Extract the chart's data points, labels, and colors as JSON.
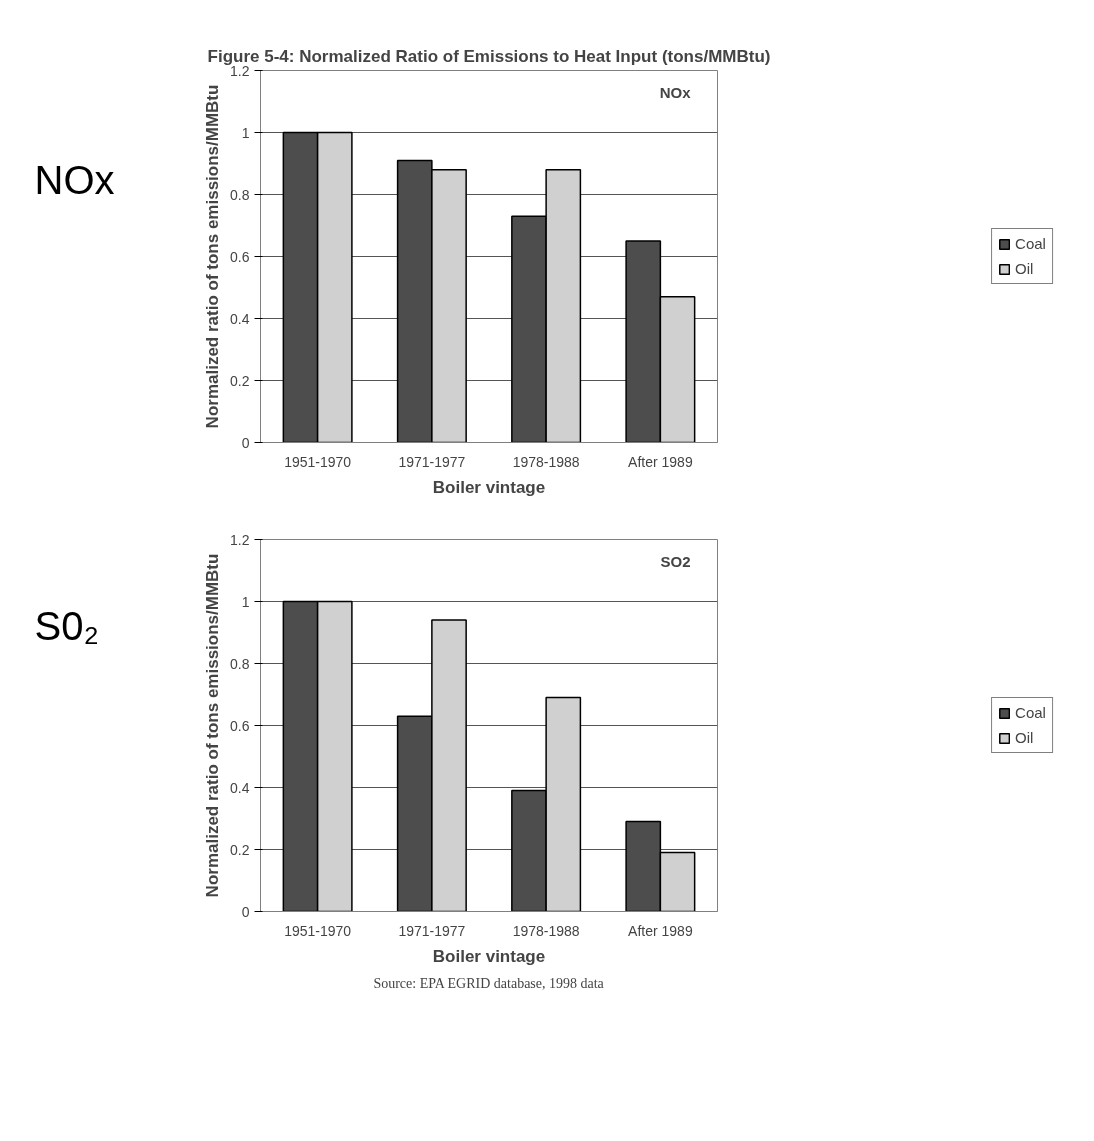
{
  "chart_data": [
    {
      "type": "bar",
      "title": "Figure 5-4: Normalized Ratio of Emissions to Heat Input (tons/MMBtu)",
      "xlabel": "Boiler vintage",
      "ylabel": "Normalized ratio of tons emissions/MMBtu",
      "categories": [
        "1951-1970",
        "1971-1977",
        "1978-1988",
        "After 1989"
      ],
      "series": [
        {
          "name": "Coal",
          "color": "#4d4d4d",
          "values": [
            1.0,
            0.91,
            0.73,
            0.65
          ]
        },
        {
          "name": "Oil",
          "color": "#d0d0d0",
          "values": [
            1.0,
            0.88,
            0.88,
            0.47
          ]
        }
      ],
      "ylim": [
        0,
        1.2
      ],
      "yticks": [
        0,
        0.2,
        0.4,
        0.6,
        0.8,
        1,
        1.2
      ],
      "grid": "y",
      "legend": "right",
      "annotations": [
        "NOx",
        "NOx"
      ]
    },
    {
      "type": "bar",
      "xlabel": "Boiler vintage",
      "ylabel": "Normalized ratio of tons emissions/MMBtu",
      "categories": [
        "1951-1970",
        "1971-1977",
        "1978-1988",
        "After 1989"
      ],
      "series": [
        {
          "name": "Coal",
          "color": "#4d4d4d",
          "values": [
            1.0,
            0.63,
            0.39,
            0.29
          ]
        },
        {
          "name": "Oil",
          "color": "#d0d0d0",
          "values": [
            1.0,
            0.94,
            0.69,
            0.19
          ]
        }
      ],
      "ylim": [
        0,
        1.2
      ],
      "yticks": [
        0,
        0.2,
        0.4,
        0.6,
        0.8,
        1,
        1.2
      ],
      "grid": "y",
      "legend": "right",
      "annotations": [
        "S0₂",
        "SO2",
        "Source: EPA EGRID database, 1998 data"
      ]
    }
  ]
}
